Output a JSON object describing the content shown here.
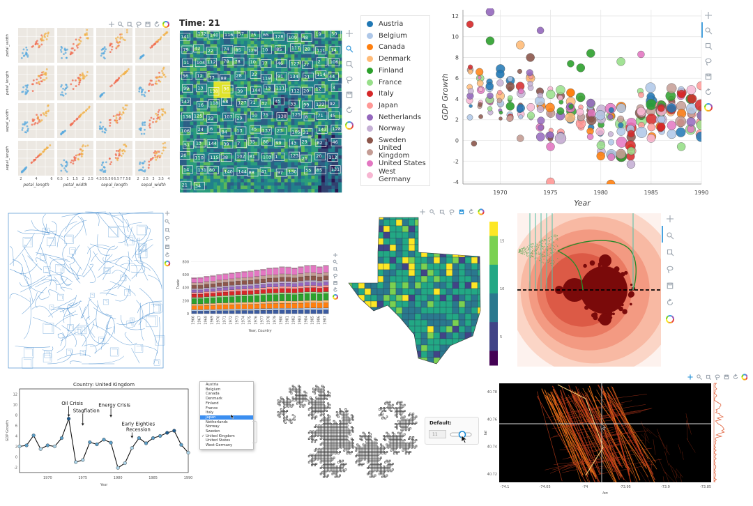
{
  "colors": {
    "bokeh_blue": "#1f77b4",
    "tool_grey": "#9aa3ad",
    "tool_active": "#1a8bd6",
    "grid": "#e6e6e6"
  },
  "toolbar_icons": [
    "pan-icon",
    "box-zoom-icon",
    "wheel-zoom-icon",
    "lasso-icon",
    "save-icon",
    "reset-icon",
    "bokeh-logo-icon"
  ],
  "chart_data": [
    {
      "id": "iris-splom",
      "type": "scatter",
      "xlabels": [
        "petal_length",
        "petal_width",
        "sepal_length",
        "sepal_width"
      ],
      "ylabels": [
        "petal_width",
        "petal_length",
        "sepal_width",
        "sepal_length"
      ],
      "xticks": [
        [
          "2",
          "4",
          "6"
        ],
        [
          "0.5",
          "1",
          "1.5",
          "2",
          "2.5"
        ],
        [
          "4.5",
          "5",
          "5.5",
          "6",
          "6.5",
          "7",
          "7.5",
          "8"
        ],
        [
          "2",
          "2.5",
          "3",
          "3.5",
          "4"
        ]
      ],
      "species_colors": [
        "#5aa9de",
        "#f06b4f",
        "#f2b24a"
      ]
    },
    {
      "id": "heatmap-boxes",
      "type": "heatmap",
      "title": "Time: 21",
      "box_labels": [
        "141",
        "132",
        "140",
        "116",
        "57",
        "75",
        "65",
        "128",
        "109",
        "48",
        "19",
        "50",
        "79",
        "42",
        "22",
        "74",
        "85",
        "129",
        "10",
        "85",
        "117",
        "28",
        "111",
        "14",
        "11",
        "104",
        "112",
        "78",
        "78",
        "10",
        "77",
        "46",
        "127",
        "27",
        "2",
        "106",
        "56",
        "12",
        "73",
        "88",
        "28",
        "22",
        "119",
        "91",
        "134",
        "21",
        "114",
        "44",
        "99",
        "13",
        "138",
        "96",
        "39",
        "144",
        "13",
        "111",
        "112",
        "20",
        "12",
        "3",
        "142",
        "16",
        "118",
        "68",
        "127",
        "71",
        "32",
        "45",
        "33",
        "99",
        "122",
        "92",
        "136",
        "125",
        "23",
        "107",
        "29",
        "10",
        "75",
        "138",
        "125",
        "8",
        "71",
        "45",
        "106",
        "24",
        "6",
        "84",
        "13",
        "45",
        "137",
        "23",
        "105",
        "31",
        "143",
        "128",
        "51",
        "13",
        "144",
        "39",
        "7",
        "35",
        "86",
        "99",
        "43",
        "29",
        "82",
        "46",
        "20",
        "110",
        "115",
        "38",
        "102",
        "81",
        "103",
        "1",
        "123",
        "21",
        "20",
        "112",
        "14",
        "131",
        "80",
        "140",
        "144",
        "88",
        "41",
        "97",
        "130",
        "55",
        "85",
        "131",
        "21",
        "34"
      ]
    },
    {
      "id": "gdp-growth",
      "type": "scatter",
      "ylabel": "GDP Growth",
      "xlabel": "Year",
      "xlim": [
        1966.3,
        1990
      ],
      "ylim": [
        -4.2,
        12.6
      ],
      "xticks": [
        1970,
        1975,
        1980,
        1985,
        1990
      ],
      "yticks": [
        -4,
        -2,
        0,
        2,
        4,
        6,
        8,
        10,
        12
      ],
      "legend_location": "outside-left",
      "countries": [
        "Austria",
        "Belgium",
        "Canada",
        "Denmark",
        "Finland",
        "France",
        "Italy",
        "Japan",
        "Netherlands",
        "Norway",
        "Sweden",
        "United Kingdom",
        "United States",
        "West Germany"
      ],
      "country_colors": [
        "#1f77b4",
        "#aec7e8",
        "#ff7f0e",
        "#ffbb78",
        "#2ca02c",
        "#98df8a",
        "#d62728",
        "#ff9896",
        "#9467bd",
        "#c5b0d5",
        "#8c564b",
        "#c49c94",
        "#e377c2",
        "#f7b6d2"
      ],
      "points": [
        [
          1967,
          11.2,
          6,
          5
        ],
        [
          1969,
          12.4,
          8,
          6
        ],
        [
          1969,
          9.6,
          4,
          6
        ],
        [
          1972,
          9.2,
          3,
          6
        ],
        [
          1973,
          8.0,
          10,
          6
        ],
        [
          1974,
          10.6,
          8,
          5
        ],
        [
          1977,
          7.4,
          4,
          5
        ],
        [
          1978,
          7.0,
          4,
          6
        ],
        [
          1979,
          8.4,
          4,
          6
        ],
        [
          1982,
          7.6,
          5,
          6
        ],
        [
          1984,
          8.3,
          12,
          5
        ],
        [
          1971,
          3.3,
          4,
          6
        ],
        [
          1972,
          0.2,
          11,
          5
        ],
        [
          1976,
          0.2,
          9,
          8
        ],
        [
          1980,
          -1.5,
          2,
          6
        ],
        [
          1982,
          -1.3,
          11,
          7
        ],
        [
          1975,
          -4.0,
          7,
          6
        ],
        [
          1975,
          -0.6,
          12,
          6
        ],
        [
          1983,
          -2.3,
          9,
          6
        ],
        [
          1986,
          1.3,
          6,
          6
        ],
        [
          1981,
          -4.2,
          2,
          6
        ],
        [
          1985,
          0.2,
          13,
          6
        ],
        [
          1988,
          -0.6,
          5,
          6
        ],
        [
          1967.4,
          -0.3,
          10,
          4
        ],
        [
          1970,
          6.4,
          0,
          6
        ],
        [
          1971,
          5.2,
          10,
          6
        ],
        [
          1977,
          4.6,
          2,
          6
        ],
        [
          1979,
          3.6,
          8,
          6
        ],
        [
          1984,
          2.8,
          13,
          6
        ],
        [
          1986,
          3.1,
          6,
          5
        ]
      ]
    },
    {
      "id": "stacked-bars",
      "type": "bar",
      "xlabel": "Year, Country",
      "ylabel": "Trade",
      "ylim": [
        0,
        900
      ],
      "yticks": [
        0,
        200,
        400,
        600,
        800
      ],
      "categories": [
        "1966",
        "1967",
        "1968",
        "1969",
        "1970",
        "1971",
        "1972",
        "1973",
        "1974",
        "1975",
        "1976",
        "1977",
        "1978",
        "1979",
        "1980",
        "1981",
        "1982",
        "1983",
        "1984",
        "1985",
        "1986",
        "1987"
      ],
      "series": [
        {
          "color": "#3b5ba0",
          "values": [
            40,
            40,
            42,
            42,
            44,
            45,
            46,
            48,
            48,
            47,
            50,
            52,
            52,
            54,
            55,
            55,
            54,
            56,
            58,
            58,
            56,
            58
          ]
        },
        {
          "color": "#aec7e8",
          "values": [
            20,
            20,
            22,
            22,
            24,
            24,
            25,
            25,
            26,
            26,
            26,
            27,
            28,
            28,
            28,
            28,
            29,
            29,
            30,
            30,
            30,
            31
          ]
        },
        {
          "color": "#ff7f0e",
          "values": [
            60,
            60,
            62,
            62,
            64,
            65,
            66,
            68,
            68,
            70,
            70,
            72,
            74,
            74,
            76,
            75,
            74,
            76,
            78,
            78,
            76,
            78
          ]
        },
        {
          "color": "#ffbb78",
          "values": [
            30,
            30,
            30,
            32,
            32,
            32,
            33,
            33,
            34,
            34,
            35,
            35,
            36,
            36,
            36,
            36,
            36,
            37,
            37,
            38,
            37,
            38
          ]
        },
        {
          "color": "#2ca02c",
          "values": [
            80,
            80,
            82,
            84,
            86,
            88,
            90,
            92,
            92,
            94,
            96,
            98,
            100,
            100,
            102,
            102,
            100,
            102,
            104,
            104,
            102,
            104
          ]
        },
        {
          "color": "#98df8a",
          "values": [
            20,
            20,
            22,
            22,
            22,
            23,
            23,
            24,
            24,
            24,
            25,
            25,
            26,
            26,
            26,
            26,
            26,
            27,
            27,
            27,
            27,
            28
          ]
        },
        {
          "color": "#d62728",
          "values": [
            50,
            50,
            52,
            52,
            54,
            55,
            56,
            57,
            58,
            58,
            60,
            60,
            62,
            62,
            64,
            64,
            62,
            64,
            66,
            66,
            64,
            66
          ]
        },
        {
          "color": "#ff9896",
          "values": [
            25,
            25,
            26,
            26,
            27,
            27,
            28,
            28,
            29,
            29,
            30,
            30,
            31,
            31,
            32,
            32,
            31,
            32,
            33,
            33,
            32,
            33
          ]
        },
        {
          "color": "#9467bd",
          "values": [
            40,
            40,
            41,
            42,
            43,
            44,
            45,
            46,
            46,
            47,
            48,
            49,
            50,
            50,
            51,
            51,
            50,
            51,
            52,
            52,
            51,
            52
          ]
        },
        {
          "color": "#c5b0d5",
          "values": [
            20,
            20,
            21,
            21,
            22,
            22,
            23,
            23,
            24,
            24,
            24,
            25,
            25,
            26,
            26,
            26,
            25,
            26,
            27,
            27,
            26,
            27
          ]
        },
        {
          "color": "#8c564b",
          "values": [
            50,
            50,
            52,
            52,
            54,
            55,
            56,
            57,
            58,
            58,
            60,
            60,
            62,
            62,
            64,
            64,
            62,
            64,
            66,
            66,
            64,
            66
          ]
        },
        {
          "color": "#c49c94",
          "values": [
            40,
            40,
            41,
            42,
            43,
            44,
            45,
            46,
            46,
            47,
            48,
            49,
            50,
            50,
            51,
            51,
            50,
            51,
            52,
            52,
            51,
            52
          ]
        },
        {
          "color": "#e377c2",
          "values": [
            70,
            72,
            74,
            76,
            78,
            80,
            82,
            84,
            86,
            88,
            90,
            92,
            96,
            98,
            100,
            98,
            96,
            98,
            102,
            104,
            96,
            100
          ]
        },
        {
          "color": "#f7b6d2",
          "values": [
            10,
            10,
            10,
            10,
            10,
            10,
            10,
            10,
            10,
            10,
            10,
            10,
            10,
            10,
            10,
            10,
            10,
            10,
            10,
            10,
            10,
            10
          ]
        }
      ]
    },
    {
      "id": "texas-choropleth",
      "type": "heatmap",
      "colorbar_ticks": [
        "15",
        "10",
        "5"
      ],
      "colorbar_range": [
        2,
        17
      ]
    },
    {
      "id": "uk-gdp-line",
      "type": "line",
      "title": "Country: United Kingdom",
      "xlabel": "Year",
      "ylabel": "GDP Growth",
      "xlim": [
        1966,
        1990
      ],
      "ylim": [
        -3,
        13
      ],
      "xticks": [
        1970,
        1975,
        1980,
        1985,
        1990
      ],
      "yticks": [
        -2,
        0,
        2,
        4,
        6,
        8,
        10,
        12
      ],
      "x": [
        1966,
        1967,
        1968,
        1969,
        1970,
        1971,
        1972,
        1973,
        1974,
        1975,
        1976,
        1977,
        1978,
        1979,
        1980,
        1981,
        1982,
        1983,
        1984,
        1985,
        1986,
        1987,
        1988,
        1989,
        1990
      ],
      "y": [
        2.0,
        2.2,
        4.1,
        1.5,
        2.2,
        2.0,
        3.6,
        7.3,
        -1.0,
        -0.6,
        2.8,
        2.4,
        3.3,
        2.7,
        -2.1,
        -1.2,
        1.7,
        3.6,
        2.6,
        3.6,
        4.0,
        4.6,
        5.0,
        2.3,
        0.8
      ],
      "annotations": [
        {
          "text": "Oil Crisis",
          "x": 1973,
          "y": 7.3
        },
        {
          "text": "Stagflation",
          "x": 1975,
          "y": 5.6
        },
        {
          "text": "Energy Crisis",
          "x": 1979,
          "y": 7.2
        },
        {
          "text": "Early Eighties\nRecession",
          "x": 1982,
          "y": 3.2
        }
      ]
    },
    {
      "id": "taxi-density",
      "type": "heatmap",
      "xlabel": "lon",
      "ylabel": "lat",
      "xticks": [
        "-74.1",
        "-74.05",
        "-74",
        "-73.95",
        "-73.9",
        "-73.85"
      ],
      "yticks": [
        "40.78",
        "40.76",
        "40.74",
        "40.72"
      ]
    }
  ],
  "dropdown": {
    "items": [
      "Austria",
      "Belgium",
      "Canada",
      "Denmark",
      "Finland",
      "France",
      "Italy",
      "Japan",
      "Netherlands",
      "Norway",
      "Sweden",
      "United Kingdom",
      "United States",
      "West Germany"
    ],
    "selected": "Japan",
    "checked": "United Kingdom",
    "check_mark": "✓"
  },
  "widget": {
    "label": "Default:",
    "value": "11"
  }
}
